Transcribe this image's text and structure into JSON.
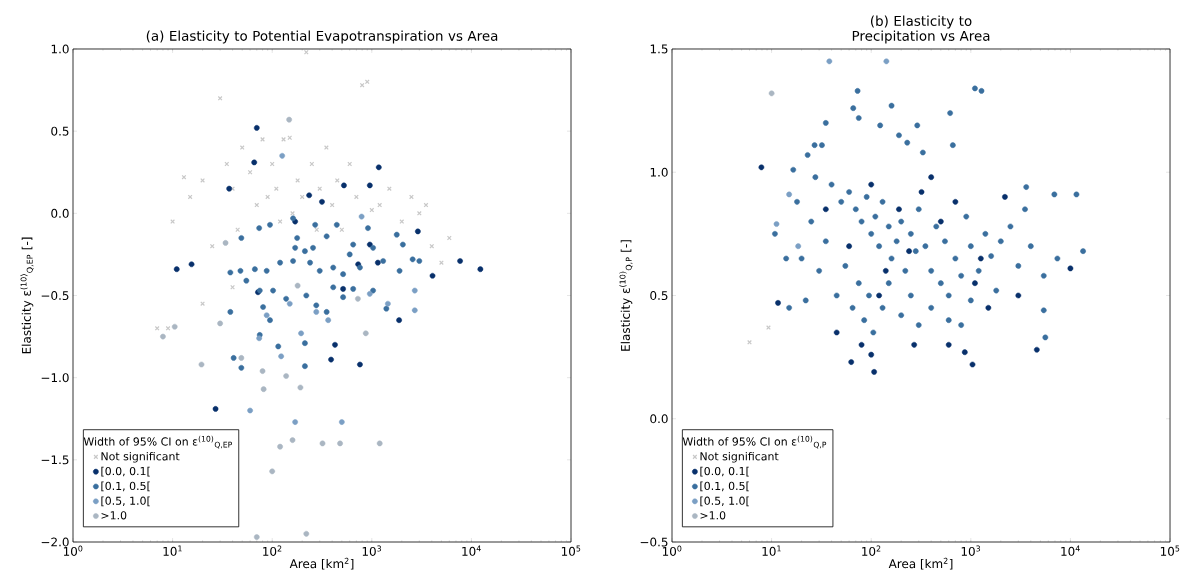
{
  "chart_data": [
    {
      "type": "scatter",
      "title": "(a) Elasticity to Potential Evapotranspiration vs Area",
      "xlabel": "Area [km$^{2}$]",
      "ylabel": "Elasticity ε$^{(10)}$$_{Q,EP}$ [-]",
      "legend_title": "Width of 95% CI on ε$^{(10)}$$_{Q,EP}$",
      "log": "x",
      "legend": "bottom left",
      "xlim": [
        1,
        100000
      ],
      "xticks": [
        {
          "value": 1,
          "label": "10$^{0}$"
        },
        {
          "value": 10,
          "label": "10$^{1}$"
        },
        {
          "value": 100,
          "label": "10$^{2}$"
        },
        {
          "value": 1000,
          "label": "10$^{3}$"
        },
        {
          "value": 10000,
          "label": "10$^{4}$"
        },
        {
          "value": 100000,
          "label": "10$^{5}$"
        }
      ],
      "ylim": [
        -2,
        1
      ],
      "yticks": [
        {
          "value": -2,
          "label": "−2.0"
        },
        {
          "value": -1.5,
          "label": "−1.5"
        },
        {
          "value": -1,
          "label": "−1.0"
        },
        {
          "value": -0.5,
          "label": "−0.5"
        },
        {
          "value": 0,
          "label": "0.0"
        },
        {
          "value": 0.5,
          "label": "0.5"
        },
        {
          "value": 1,
          "label": "1.0"
        }
      ],
      "series": [
        {
          "name": "Not significant",
          "color": "#c8c8c8",
          "marker": "cross",
          "x": [
            7,
            9,
            10,
            13,
            15,
            20,
            25,
            30,
            35,
            40,
            45,
            50,
            60,
            70,
            80,
            90,
            100,
            110,
            120,
            130,
            150,
            160,
            180,
            200,
            220,
            250,
            280,
            300,
            350,
            400,
            450,
            500,
            600,
            700,
            800,
            900,
            1000,
            1200,
            1500,
            2000,
            2500,
            3000,
            3500,
            4000,
            5000,
            6000,
            40,
            20
          ],
          "values": [
            -0.7,
            -0.7,
            -0.05,
            0.22,
            0.1,
            0.2,
            -0.2,
            0.7,
            0.3,
            0.15,
            -0.1,
            0.4,
            0.25,
            0.05,
            0.45,
            0.1,
            0.3,
            0.15,
            -0.05,
            0.45,
            0.46,
            0.0,
            0.2,
            0.1,
            0.98,
            0.3,
            -0.1,
            0.15,
            0.4,
            0.05,
            0.2,
            -0.1,
            0.3,
            0.1,
            0.78,
            0.8,
            0.02,
            0.05,
            0.15,
            -0.05,
            0.1,
            0.0,
            0.05,
            -0.2,
            -0.3,
            -0.15,
            -0.45,
            -0.55
          ]
        },
        {
          "name": "[0.0, 0.1[",
          "color": "#08306b",
          "marker": "circle",
          "x": [
            70,
            66,
            37,
            1175,
            525,
            955,
            316,
            235,
            170,
            955,
            730,
            1150,
            7700,
            12300,
            11,
            15.5,
            4070,
            2900,
            1880,
            760,
            390,
            427,
            27,
            72,
            515
          ],
          "values": [
            0.52,
            0.31,
            0.15,
            0.28,
            0.17,
            0.17,
            0.07,
            0.11,
            -0.05,
            -0.19,
            -0.31,
            -0.3,
            -0.29,
            -0.34,
            -0.34,
            -0.31,
            -0.38,
            -0.11,
            -0.65,
            -0.92,
            -0.89,
            -0.8,
            -1.19,
            -0.48,
            -0.46
          ]
        },
        {
          "name": "[0.1, 0.5[",
          "color": "#3a6f9e",
          "marker": "circle",
          "x": [
            74,
            95,
            49,
            178,
            170,
            213,
            257,
            352,
            445,
            650,
            915,
            1030,
            1780,
            2050,
            2570,
            3000,
            1300,
            760,
            600,
            515,
            410,
            300,
            240,
            162,
            120,
            88,
            67,
            48,
            38,
            75,
            102,
            138,
            220,
            277,
            352,
            410,
            515,
            650,
            1030,
            1400,
            1900,
            81,
            95,
            75,
            115,
            213,
            213,
            49,
            41,
            38,
            55,
            162,
            270
          ],
          "values": [
            -0.09,
            -0.07,
            -0.15,
            -0.15,
            -0.21,
            -0.23,
            -0.21,
            -0.14,
            -0.07,
            -0.19,
            -0.09,
            -0.21,
            -0.13,
            -0.19,
            -0.28,
            -0.29,
            -0.29,
            -0.33,
            -0.25,
            -0.37,
            -0.33,
            -0.35,
            -0.3,
            -0.29,
            -0.3,
            -0.35,
            -0.34,
            -0.35,
            -0.36,
            -0.47,
            -0.47,
            -0.52,
            -0.5,
            -0.56,
            -0.6,
            -0.45,
            -0.51,
            -0.46,
            -0.47,
            -0.58,
            -0.35,
            -0.57,
            -0.65,
            -0.74,
            -0.81,
            -0.79,
            -0.93,
            -0.94,
            -0.88,
            -0.6,
            -0.41,
            -0.03,
            -0.07
          ]
        },
        {
          "name": "[0.5, 1.0[",
          "color": "#7b9fc4",
          "marker": "circle",
          "x": [
            126,
            88,
            150,
            277,
            365,
            790,
            955,
            2700,
            2700,
            1450,
            74,
            123,
            195,
            170,
            500,
            60
          ],
          "values": [
            0.35,
            -0.62,
            -0.55,
            -0.6,
            -0.65,
            -0.02,
            -0.49,
            -0.47,
            -0.59,
            -0.55,
            -0.76,
            -0.87,
            -0.73,
            -1.27,
            -1.27,
            -1.2
          ]
        },
        {
          "name": ">1.0",
          "color": "#aab6c2",
          "marker": "circle",
          "x": [
            148,
            34,
            10.5,
            19.5,
            30,
            49,
            80,
            82,
            138,
            192,
            180,
            870,
            725,
            120,
            100,
            160,
            320,
            480,
            1200,
            70,
            220,
            8
          ],
          "values": [
            0.57,
            -0.18,
            -0.69,
            -0.92,
            -0.67,
            -0.88,
            -0.96,
            -1.07,
            -0.99,
            -1.06,
            -0.44,
            -0.73,
            -0.52,
            -1.42,
            -1.57,
            -1.38,
            -1.4,
            -1.4,
            -1.4,
            -1.97,
            -1.95,
            -0.75
          ]
        }
      ]
    },
    {
      "type": "scatter",
      "title": "(b) Elasticity to Precipitation vs Area",
      "xlabel": "Area [km$^{2}$]",
      "ylabel": "Elasticity ε$^{(10)}$$_{Q,P}$ [-]",
      "legend_title": "Width of 95% CI on ε$^{(10)}$$_{Q,P}$",
      "log": "x",
      "legend": "bottom left",
      "xlim": [
        1,
        100000
      ],
      "xticks": [
        {
          "value": 1,
          "label": "10$^{0}$"
        },
        {
          "value": 10,
          "label": "10$^{1}$"
        },
        {
          "value": 100,
          "label": "10$^{2}$"
        },
        {
          "value": 1000,
          "label": "10$^{3}$"
        },
        {
          "value": 10000,
          "label": "10$^{4}$"
        },
        {
          "value": 100000,
          "label": "10$^{5}$"
        }
      ],
      "ylim": [
        -0.5,
        1.5
      ],
      "yticks": [
        {
          "value": -0.5,
          "label": "−0.5"
        },
        {
          "value": 0,
          "label": "0.0"
        },
        {
          "value": 0.5,
          "label": "0.5"
        },
        {
          "value": 1,
          "label": "1.0"
        },
        {
          "value": 1.5,
          "label": "1.5"
        }
      ],
      "series": [
        {
          "name": "Not significant",
          "color": "#c8c8c8",
          "marker": "cross",
          "x": [
            6,
            9.3
          ],
          "values": [
            0.31,
            0.37
          ]
        },
        {
          "name": "[0.0, 0.1[",
          "color": "#08306b",
          "marker": "circle",
          "x": [
            60,
            100,
            140,
            190,
            240,
            320,
            500,
            700,
            1100,
            1500,
            2200,
            3000,
            80,
            120,
            270,
            600,
            45,
            35,
            1260,
            400,
            11.6,
            107,
            100,
            63,
            1040,
            870,
            4600,
            10000,
            7.9
          ],
          "values": [
            0.7,
            0.95,
            0.6,
            0.85,
            0.68,
            0.92,
            0.8,
            0.88,
            0.55,
            0.45,
            0.9,
            0.5,
            0.3,
            0.5,
            0.3,
            0.3,
            0.35,
            0.85,
            0.65,
            0.98,
            0.47,
            0.19,
            0.26,
            0.23,
            0.22,
            0.27,
            0.28,
            0.61,
            1.02
          ]
        },
        {
          "name": "[0.1, 0.5[",
          "color": "#3a6f9e",
          "marker": "circle",
          "x": [
            73,
            1100,
            1280,
            66,
            160,
            620,
            75,
            35,
            123,
            290,
            190,
            230,
            660,
            27,
            32,
            330,
            23,
            16.5,
            27.5,
            3600,
            6900,
            11500,
            13400,
            7400,
            5400,
            5400,
            5600,
            14,
            10.8,
            40,
            50,
            60,
            70,
            80,
            90,
            100,
            110,
            120,
            130,
            150,
            160,
            180,
            200,
            220,
            250,
            280,
            300,
            350,
            400,
            450,
            500,
            550,
            600,
            700,
            800,
            900,
            1000,
            1200,
            1400,
            1600,
            1800,
            2000,
            2500,
            3000,
            3500,
            4000,
            25,
            30,
            35,
            45,
            55,
            65,
            75,
            85,
            95,
            105,
            130,
            150,
            200,
            250,
            300,
            400,
            600,
            800,
            1000,
            20,
            22,
            18,
            15
          ],
          "values": [
            1.33,
            1.34,
            1.33,
            1.26,
            1.27,
            1.24,
            1.22,
            1.2,
            1.19,
            1.19,
            1.15,
            1.12,
            1.11,
            1.11,
            1.11,
            1.08,
            1.07,
            1.01,
            0.98,
            0.94,
            0.91,
            0.91,
            0.68,
            0.65,
            0.58,
            0.44,
            0.33,
            0.65,
            0.75,
            0.95,
            0.88,
            0.92,
            0.85,
            0.8,
            0.9,
            0.75,
            0.82,
            0.7,
            0.88,
            0.78,
            0.65,
            0.72,
            0.8,
            0.6,
            0.75,
            0.68,
            0.85,
            0.7,
            0.6,
            0.78,
            0.55,
            0.72,
            0.5,
            0.65,
            0.58,
            0.82,
            0.7,
            0.6,
            0.75,
            0.66,
            0.52,
            0.72,
            0.78,
            0.62,
            0.85,
            0.7,
            0.8,
            0.6,
            0.72,
            0.5,
            0.62,
            0.45,
            0.55,
            0.4,
            0.5,
            0.35,
            0.45,
            0.55,
            0.42,
            0.5,
            0.38,
            0.45,
            0.4,
            0.38,
            0.48,
            0.65,
            0.48,
            0.88,
            0.45
          ]
        },
        {
          "name": "[0.5, 1.0[",
          "color": "#7b9fc4",
          "marker": "circle",
          "x": [
            38,
            142,
            11.2,
            18.5,
            15
          ],
          "values": [
            1.45,
            1.45,
            0.79,
            0.7,
            0.91
          ]
        },
        {
          "name": ">1.0",
          "color": "#aab6c2",
          "marker": "circle",
          "x": [
            10
          ],
          "values": [
            1.32
          ]
        }
      ]
    }
  ]
}
